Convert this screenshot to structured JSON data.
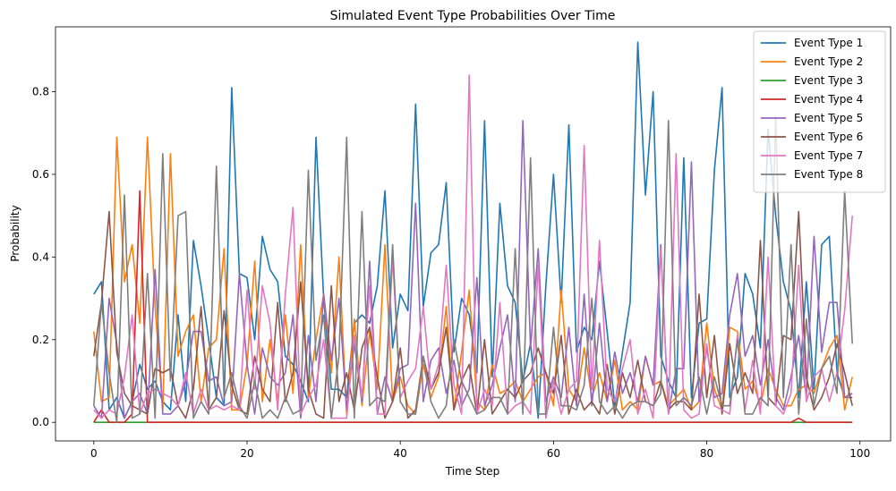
{
  "chart_data": {
    "type": "line",
    "title": "Simulated Event Type Probabilities Over Time",
    "xlabel": "Time Step",
    "ylabel": "Probability",
    "xlim": [
      -5,
      104
    ],
    "ylim": [
      -0.045,
      0.957
    ],
    "x_ticks": [
      0,
      20,
      40,
      60,
      80,
      100
    ],
    "x_tick_labels": [
      "0",
      "20",
      "40",
      "60",
      "80",
      "100"
    ],
    "y_ticks": [
      0,
      0.2,
      0.4,
      0.6,
      0.8
    ],
    "y_tick_labels": [
      "0.0",
      "0.2",
      "0.4",
      "0.6",
      "0.8"
    ],
    "grid": false,
    "legend_position": "top-right",
    "x": [
      0,
      1,
      2,
      3,
      4,
      5,
      6,
      7,
      8,
      9,
      10,
      11,
      12,
      13,
      14,
      15,
      16,
      17,
      18,
      19,
      20,
      21,
      22,
      23,
      24,
      25,
      26,
      27,
      28,
      29,
      30,
      31,
      32,
      33,
      34,
      35,
      36,
      37,
      38,
      39,
      40,
      41,
      42,
      43,
      44,
      45,
      46,
      47,
      48,
      49,
      50,
      51,
      52,
      53,
      54,
      55,
      56,
      57,
      58,
      59,
      60,
      61,
      62,
      63,
      64,
      65,
      66,
      67,
      68,
      69,
      70,
      71,
      72,
      73,
      74,
      75,
      76,
      77,
      78,
      79,
      80,
      81,
      82,
      83,
      84,
      85,
      86,
      87,
      88,
      89,
      90,
      91,
      92,
      93,
      94,
      95,
      96,
      97,
      98,
      99
    ],
    "series": [
      {
        "name": "Event Type 1",
        "color": "#1f77b4",
        "values": [
          0.31,
          0.34,
          0.03,
          0.06,
          0.01,
          0.05,
          0.14,
          0.08,
          0.1,
          0.05,
          0.03,
          0.26,
          0.05,
          0.44,
          0.33,
          0.2,
          0.06,
          0.04,
          0.81,
          0.36,
          0.35,
          0.2,
          0.45,
          0.37,
          0.34,
          0.16,
          0.14,
          0.1,
          0.05,
          0.69,
          0.3,
          0.08,
          0.08,
          0.06,
          0.24,
          0.26,
          0.24,
          0.33,
          0.56,
          0.18,
          0.31,
          0.27,
          0.77,
          0.28,
          0.41,
          0.43,
          0.58,
          0.17,
          0.3,
          0.26,
          0.12,
          0.73,
          0.11,
          0.53,
          0.33,
          0.29,
          0.1,
          0.19,
          0.01,
          0.33,
          0.6,
          0.29,
          0.72,
          0.17,
          0.23,
          0.2,
          0.39,
          0.22,
          0.04,
          0.17,
          0.29,
          0.92,
          0.55,
          0.8,
          0.16,
          0.1,
          0.06,
          0.64,
          0.06,
          0.24,
          0.25,
          0.61,
          0.81,
          0.06,
          0.11,
          0.36,
          0.31,
          0.18,
          0.71,
          0.5,
          0.34,
          0.27,
          0.06,
          0.34,
          0.08,
          0.43,
          0.45,
          0.12,
          0.06,
          0.06
        ]
      },
      {
        "name": "Event Type 2",
        "color": "#ff7f0e",
        "values": [
          0.22,
          0.05,
          0.06,
          0.69,
          0.34,
          0.43,
          0.24,
          0.69,
          0.28,
          0.03,
          0.65,
          0.16,
          0.22,
          0.26,
          0.05,
          0.18,
          0.2,
          0.42,
          0.03,
          0.03,
          0.14,
          0.39,
          0.05,
          0.2,
          0.05,
          0.26,
          0.07,
          0.43,
          0.06,
          0.2,
          0.31,
          0.12,
          0.4,
          0.02,
          0.25,
          0.04,
          0.22,
          0.08,
          0.43,
          0.05,
          0.11,
          0.04,
          0.02,
          0.14,
          0.06,
          0.11,
          0.28,
          0.03,
          0.17,
          0.32,
          0.05,
          0.03,
          0.14,
          0.07,
          0.08,
          0.1,
          0.05,
          0.08,
          0.11,
          0.12,
          0.04,
          0.32,
          0.08,
          0.05,
          0.18,
          0.06,
          0.12,
          0.05,
          0.15,
          0.03,
          0.05,
          0.03,
          0.16,
          0.09,
          0.1,
          0.04,
          0.06,
          0.08,
          0.03,
          0.05,
          0.24,
          0.08,
          0.03,
          0.23,
          0.22,
          0.08,
          0.1,
          0.04,
          0.13,
          0.08,
          0.04,
          0.04,
          0.08,
          0.09,
          0.07,
          0.13,
          0.18,
          0.21,
          0.03,
          0.11
        ]
      },
      {
        "name": "Event Type 3",
        "color": "#2ca02c",
        "values": [
          0.0,
          0.0,
          0.0,
          0.0,
          0.0,
          0.0,
          0.0,
          0.0,
          0.0,
          0.0,
          0.0,
          0.0,
          0.0,
          0.0,
          0.0,
          0.0,
          0.0,
          0.0,
          0.0,
          0.0,
          0.0,
          0.0,
          0.0,
          0.0,
          0.0,
          0.0,
          0.0,
          0.0,
          0.0,
          0.0,
          0.0,
          0.0,
          0.0,
          0.0,
          0.0,
          0.0,
          0.0,
          0.0,
          0.0,
          0.0,
          0.0,
          0.0,
          0.0,
          0.0,
          0.0,
          0.0,
          0.0,
          0.0,
          0.0,
          0.0,
          0.0,
          0.0,
          0.0,
          0.0,
          0.0,
          0.0,
          0.0,
          0.0,
          0.0,
          0.0,
          0.0,
          0.0,
          0.0,
          0.0,
          0.0,
          0.0,
          0.0,
          0.0,
          0.0,
          0.0,
          0.0,
          0.0,
          0.0,
          0.0,
          0.0,
          0.0,
          0.0,
          0.0,
          0.0,
          0.0,
          0.0,
          0.0,
          0.0,
          0.0,
          0.0,
          0.0,
          0.0,
          0.0,
          0.0,
          0.0,
          0.0,
          0.0,
          0.0,
          0.0,
          0.0,
          0.0,
          0.0,
          0.0,
          0.0,
          0.0
        ]
      },
      {
        "name": "Event Type 4",
        "color": "#d62728",
        "values": [
          0.0,
          0.03,
          0.0,
          0.0,
          0.0,
          0.02,
          0.56,
          0.0,
          0.0,
          0.0,
          0.0,
          0.0,
          0.0,
          0.0,
          0.0,
          0.0,
          0.0,
          0.0,
          0.0,
          0.0,
          0.0,
          0.0,
          0.0,
          0.0,
          0.0,
          0.0,
          0.0,
          0.0,
          0.0,
          0.0,
          0.0,
          0.0,
          0.0,
          0.0,
          0.0,
          0.0,
          0.0,
          0.0,
          0.0,
          0.0,
          0.0,
          0.0,
          0.0,
          0.0,
          0.0,
          0.0,
          0.0,
          0.0,
          0.0,
          0.0,
          0.0,
          0.0,
          0.0,
          0.0,
          0.0,
          0.0,
          0.0,
          0.0,
          0.0,
          0.0,
          0.0,
          0.0,
          0.0,
          0.0,
          0.0,
          0.0,
          0.0,
          0.0,
          0.0,
          0.0,
          0.0,
          0.0,
          0.0,
          0.0,
          0.0,
          0.0,
          0.0,
          0.0,
          0.0,
          0.0,
          0.0,
          0.0,
          0.0,
          0.0,
          0.0,
          0.0,
          0.0,
          0.0,
          0.0,
          0.0,
          0.0,
          0.0,
          0.01,
          0.0,
          0.0,
          0.0,
          0.0,
          0.0,
          0.0,
          0.0
        ]
      },
      {
        "name": "Event Type 5",
        "color": "#9467bd",
        "values": [
          0.04,
          0.01,
          0.3,
          0.19,
          0.01,
          0.05,
          0.07,
          0.02,
          0.37,
          0.02,
          0.02,
          0.04,
          0.1,
          0.22,
          0.22,
          0.1,
          0.11,
          0.04,
          0.05,
          0.36,
          0.14,
          0.02,
          0.18,
          0.11,
          0.09,
          0.12,
          0.26,
          0.01,
          0.21,
          0.05,
          0.31,
          0.15,
          0.3,
          0.03,
          0.19,
          0.05,
          0.39,
          0.02,
          0.11,
          0.05,
          0.13,
          0.14,
          0.53,
          0.05,
          0.15,
          0.18,
          0.07,
          0.15,
          0.04,
          0.08,
          0.35,
          0.04,
          0.09,
          0.18,
          0.26,
          0.05,
          0.73,
          0.18,
          0.42,
          0.05,
          0.11,
          0.06,
          0.23,
          0.04,
          0.31,
          0.04,
          0.24,
          0.05,
          0.17,
          0.07,
          0.12,
          0.05,
          0.16,
          0.09,
          0.43,
          0.02,
          0.13,
          0.13,
          0.63,
          0.05,
          0.18,
          0.06,
          0.07,
          0.26,
          0.36,
          0.16,
          0.21,
          0.09,
          0.2,
          0.06,
          0.03,
          0.11,
          0.21,
          0.06,
          0.45,
          0.17,
          0.29,
          0.29,
          0.06,
          0.07
        ]
      },
      {
        "name": "Event Type 6",
        "color": "#8c564b",
        "values": [
          0.16,
          0.29,
          0.51,
          0.17,
          0.07,
          0.04,
          0.03,
          0.02,
          0.13,
          0.12,
          0.13,
          0.04,
          0.01,
          0.08,
          0.28,
          0.03,
          0.06,
          0.27,
          0.09,
          0.03,
          0.02,
          0.16,
          0.08,
          0.05,
          0.29,
          0.05,
          0.12,
          0.34,
          0.08,
          0.02,
          0.01,
          0.33,
          0.05,
          0.12,
          0.03,
          0.18,
          0.23,
          0.11,
          0.01,
          0.05,
          0.18,
          0.01,
          0.03,
          0.16,
          0.08,
          0.12,
          0.23,
          0.03,
          0.1,
          0.14,
          0.02,
          0.2,
          0.02,
          0.05,
          0.08,
          0.06,
          0.1,
          0.12,
          0.18,
          0.12,
          0.07,
          0.21,
          0.02,
          0.08,
          0.03,
          0.05,
          0.02,
          0.14,
          0.02,
          0.12,
          0.06,
          0.15,
          0.05,
          0.04,
          0.1,
          0.03,
          0.05,
          0.05,
          0.03,
          0.31,
          0.06,
          0.21,
          0.02,
          0.19,
          0.07,
          0.12,
          0.07,
          0.44,
          0.06,
          0.04,
          0.21,
          0.2,
          0.51,
          0.11,
          0.03,
          0.06,
          0.11,
          0.19,
          0.12,
          0.04
        ]
      },
      {
        "name": "Event Type 7",
        "color": "#e377c2",
        "values": [
          0.03,
          0.01,
          0.03,
          0.02,
          0.11,
          0.26,
          0.02,
          0.07,
          0.08,
          0.07,
          0.06,
          0.04,
          0.12,
          0.02,
          0.08,
          0.03,
          0.04,
          0.03,
          0.04,
          0.03,
          0.32,
          0.08,
          0.33,
          0.24,
          0.03,
          0.31,
          0.52,
          0.02,
          0.06,
          0.09,
          0.2,
          0.01,
          0.01,
          0.01,
          0.21,
          0.06,
          0.33,
          0.02,
          0.02,
          0.4,
          0.06,
          0.1,
          0.13,
          0.28,
          0.08,
          0.14,
          0.38,
          0.09,
          0.02,
          0.84,
          0.02,
          0.08,
          0.04,
          0.29,
          0.02,
          0.04,
          0.05,
          0.02,
          0.38,
          0.01,
          0.1,
          0.02,
          0.08,
          0.1,
          0.67,
          0.08,
          0.44,
          0.08,
          0.05,
          0.13,
          0.2,
          0.02,
          0.08,
          0.01,
          0.42,
          0.02,
          0.65,
          0.03,
          0.01,
          0.02,
          0.19,
          0.04,
          0.03,
          0.02,
          0.21,
          0.03,
          0.15,
          0.02,
          0.4,
          0.04,
          0.02,
          0.07,
          0.38,
          0.05,
          0.11,
          0.13,
          0.05,
          0.12,
          0.27,
          0.5
        ]
      },
      {
        "name": "Event Type 8",
        "color": "#7f7f7f",
        "values": [
          0.04,
          0.29,
          0.12,
          0.0,
          0.55,
          0.01,
          0.02,
          0.36,
          0.01,
          0.65,
          0.1,
          0.5,
          0.51,
          0.01,
          0.05,
          0.02,
          0.62,
          0.06,
          0.12,
          0.04,
          0.01,
          0.1,
          0.01,
          0.03,
          0.01,
          0.06,
          0.02,
          0.03,
          0.61,
          0.15,
          0.26,
          0.01,
          0.16,
          0.69,
          0.01,
          0.51,
          0.04,
          0.06,
          0.05,
          0.43,
          0.05,
          0.02,
          0.02,
          0.16,
          0.05,
          0.01,
          0.04,
          0.2,
          0.1,
          0.06,
          0.02,
          0.03,
          0.06,
          0.06,
          0.02,
          0.42,
          0.02,
          0.64,
          0.02,
          0.02,
          0.23,
          0.04,
          0.04,
          0.03,
          0.09,
          0.3,
          0.05,
          0.02,
          0.04,
          0.01,
          0.04,
          0.05,
          0.05,
          0.04,
          0.07,
          0.73,
          0.04,
          0.06,
          0.04,
          0.11,
          0.02,
          0.11,
          0.04,
          0.04,
          0.2,
          0.02,
          0.02,
          0.06,
          0.04,
          0.74,
          0.06,
          0.43,
          0.02,
          0.25,
          0.04,
          0.13,
          0.16,
          0.07,
          0.56,
          0.19
        ]
      }
    ]
  }
}
